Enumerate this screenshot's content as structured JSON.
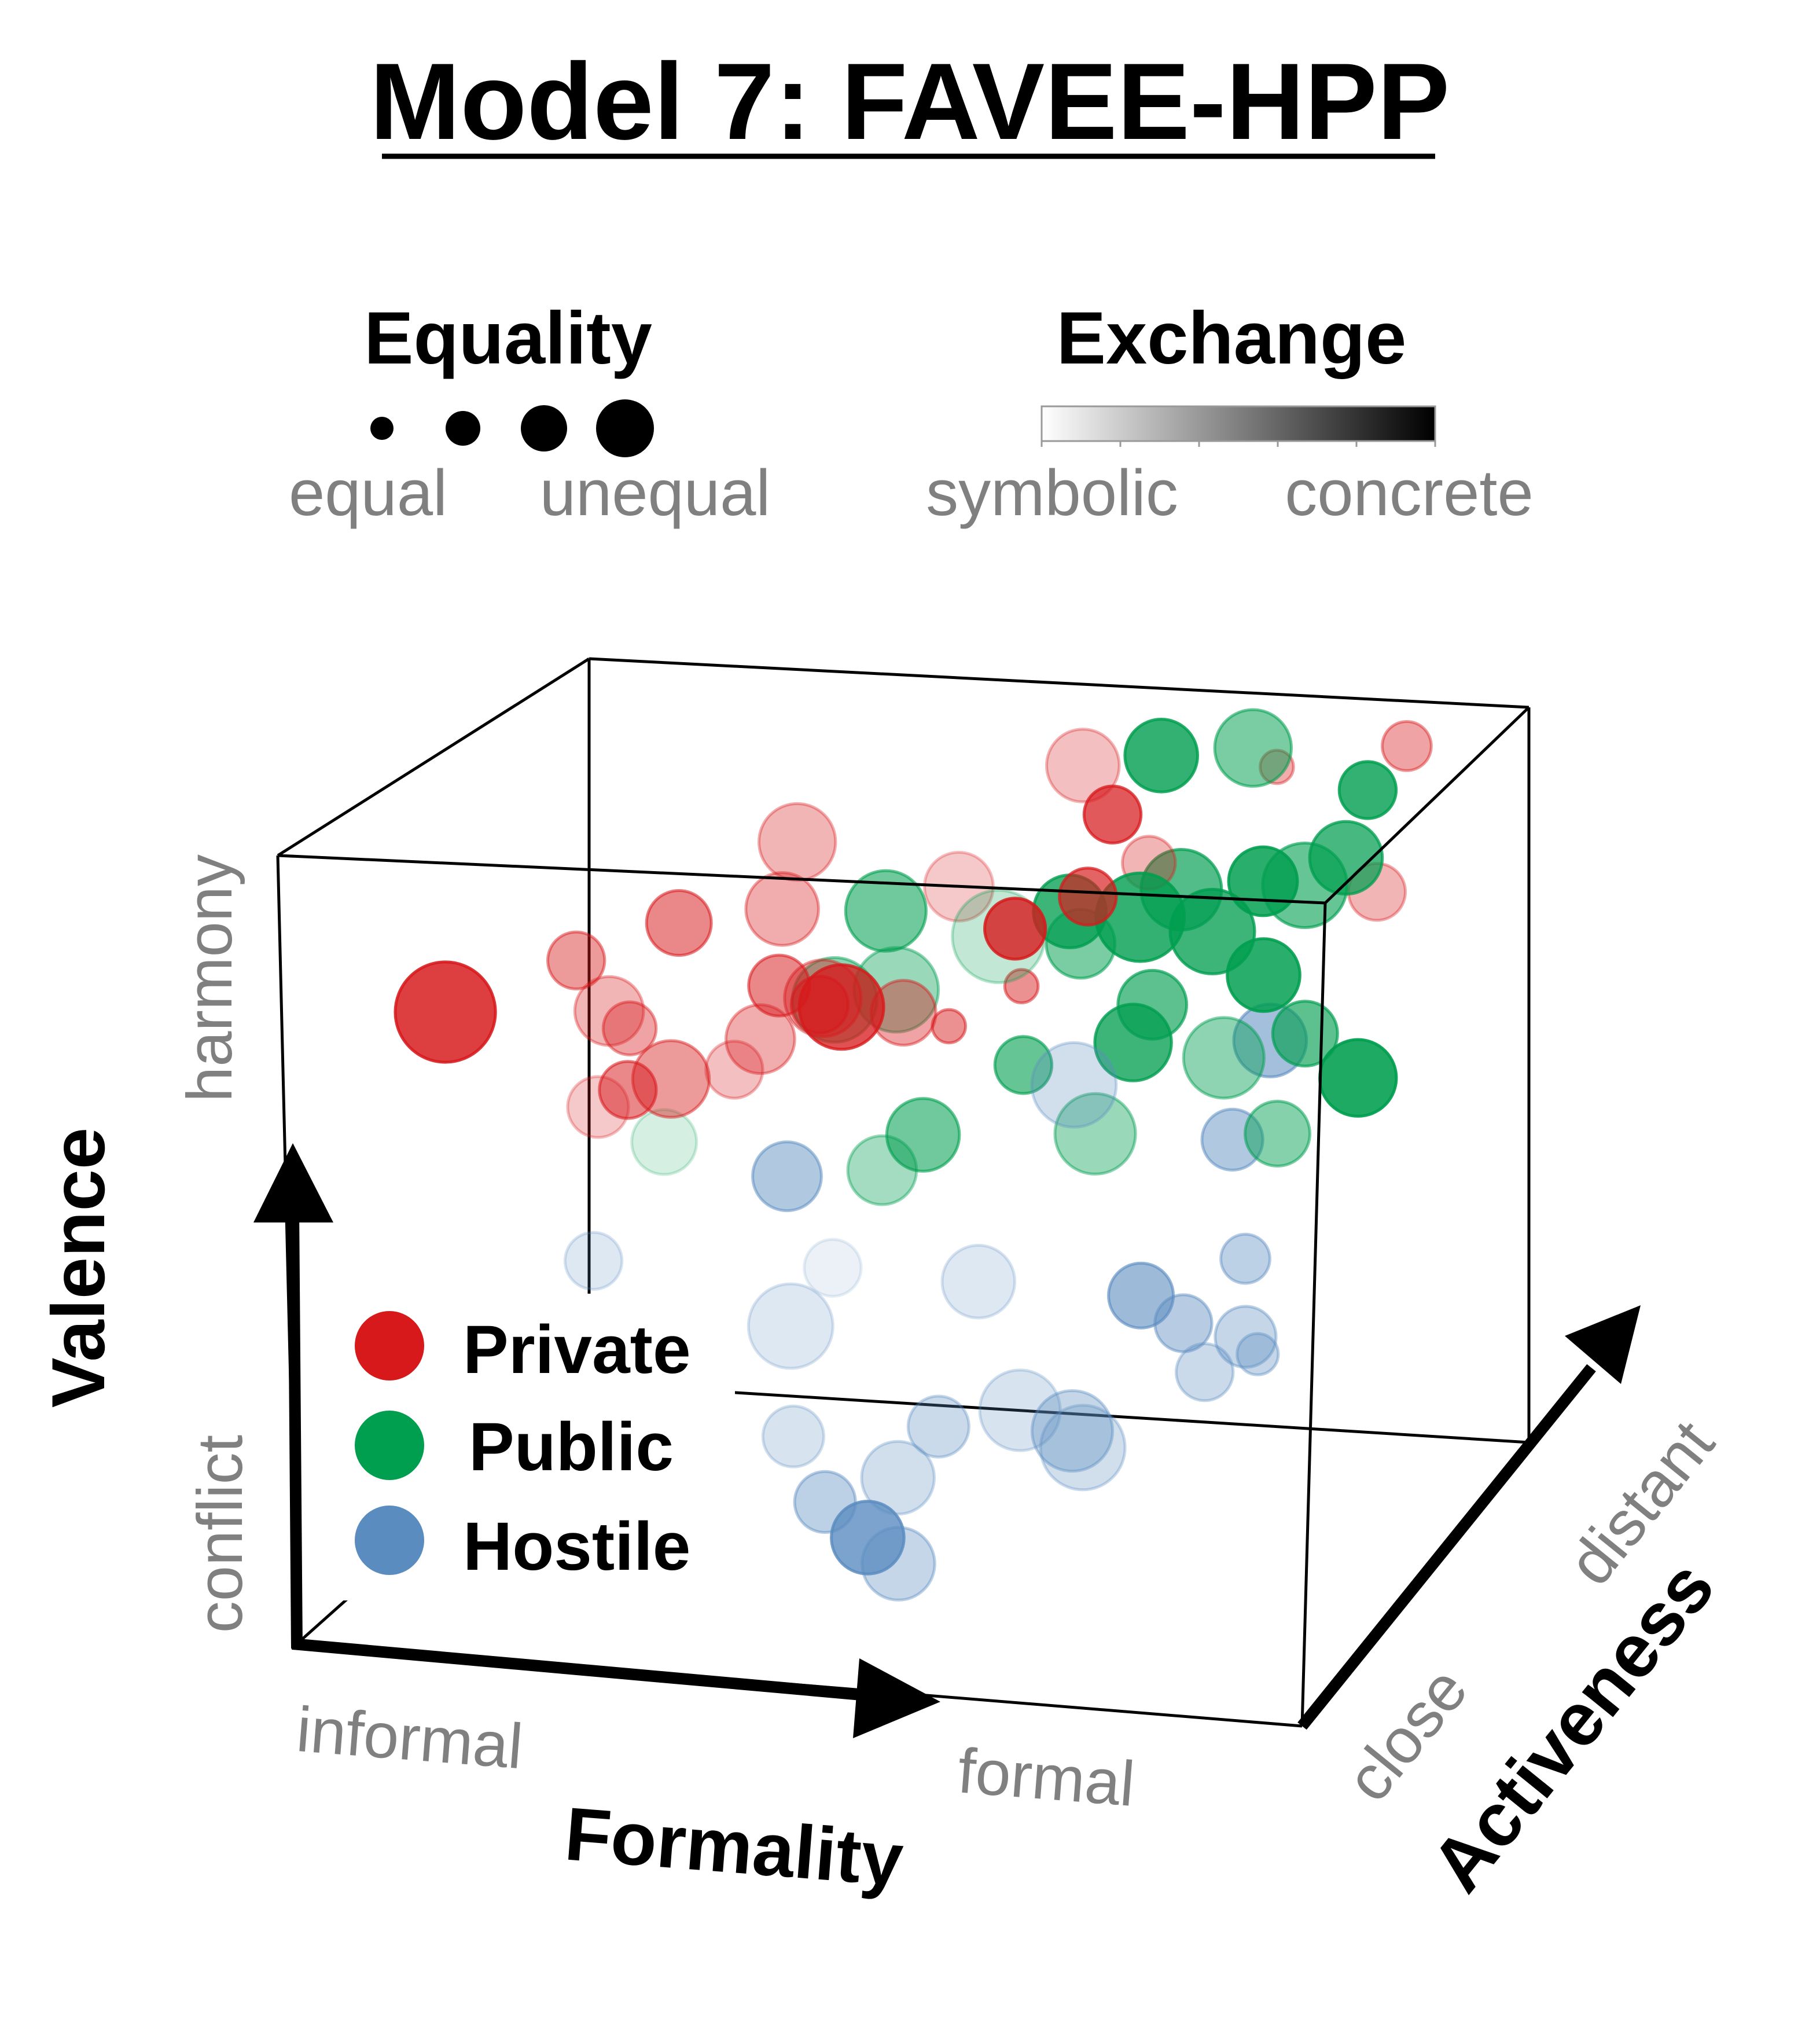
{
  "chart_data": {
    "type": "scatter",
    "title": "Model 7: FAVEE-HPP",
    "axes": {
      "x": {
        "label": "Formality",
        "low": "informal",
        "high": "formal"
      },
      "y": {
        "label": "Valence",
        "low": "conflict",
        "high": "harmony"
      },
      "z": {
        "label": "Activeness",
        "low": "close",
        "high": "distant"
      }
    },
    "size_legend": {
      "title": "Equality",
      "low": "equal",
      "high": "unequal",
      "levels": [
        0.25,
        0.5,
        0.75,
        1.0
      ]
    },
    "color_legend": {
      "title": "Exchange",
      "low": "symbolic",
      "high": "concrete"
    },
    "category_legend_placement": "lower-left inside box",
    "colors": {
      "Private": "#d7191c",
      "Public": "#009e4f",
      "Hostile": "#5b8cc0"
    },
    "grid": false,
    "series": [
      {
        "name": "Private",
        "color": "#d7191c",
        "points": [
          {
            "x": 0.14,
            "y": 0.78,
            "z": 0.1,
            "size": 0.95,
            "exchange": 0.95
          },
          {
            "x": 0.26,
            "y": 0.84,
            "z": 0.15,
            "size": 0.4,
            "exchange": 0.45
          },
          {
            "x": 0.34,
            "y": 0.86,
            "z": 0.25,
            "size": 0.5,
            "exchange": 0.55
          },
          {
            "x": 0.28,
            "y": 0.76,
            "z": 0.2,
            "size": 0.55,
            "exchange": 0.3
          },
          {
            "x": 0.34,
            "y": 0.68,
            "z": 0.2,
            "size": 0.65,
            "exchange": 0.45
          },
          {
            "x": 0.32,
            "y": 0.7,
            "z": 0.1,
            "size": 0.4,
            "exchange": 0.55
          },
          {
            "x": 0.5,
            "y": 0.77,
            "z": 0.25,
            "size": 0.75,
            "exchange": 0.85
          },
          {
            "x": 0.47,
            "y": 0.76,
            "z": 0.3,
            "size": 0.65,
            "exchange": 0.4
          },
          {
            "x": 0.55,
            "y": 0.82,
            "z": 0.55,
            "size": 0.55,
            "exchange": 0.2
          },
          {
            "x": 0.63,
            "y": 0.91,
            "z": 0.75,
            "size": 0.6,
            "exchange": 0.25
          },
          {
            "x": 0.67,
            "y": 0.87,
            "z": 0.7,
            "size": 0.4,
            "exchange": 0.8
          },
          {
            "x": 0.64,
            "y": 0.83,
            "z": 0.4,
            "size": 0.45,
            "exchange": 0.9
          },
          {
            "x": 0.69,
            "y": 0.84,
            "z": 0.5,
            "size": 0.4,
            "exchange": 0.75
          },
          {
            "x": 0.45,
            "y": 0.81,
            "z": 0.2,
            "size": 0.45,
            "exchange": 0.55
          },
          {
            "x": 0.49,
            "y": 0.79,
            "z": 0.2,
            "size": 0.4,
            "exchange": 0.5
          },
          {
            "x": 0.22,
            "y": 0.56,
            "z": 0.4,
            "size": 0.45,
            "exchange": 0.2
          },
          {
            "x": 0.38,
            "y": 0.66,
            "z": 0.3,
            "size": 0.4,
            "exchange": 0.25
          },
          {
            "x": 0.39,
            "y": 0.86,
            "z": 0.55,
            "size": 0.65,
            "exchange": 0.3
          },
          {
            "x": 0.55,
            "y": 0.75,
            "z": 0.3,
            "size": 0.5,
            "exchange": 0.4
          },
          {
            "x": 0.8,
            "y": 0.89,
            "z": 0.85,
            "size": 0.1,
            "exchange": 0.35
          },
          {
            "x": 0.93,
            "y": 0.93,
            "z": 0.85,
            "size": 0.3,
            "exchange": 0.4
          },
          {
            "x": 0.92,
            "y": 0.78,
            "z": 0.75,
            "size": 0.4,
            "exchange": 0.3
          },
          {
            "x": 0.56,
            "y": 0.68,
            "z": 0.45,
            "size": 0.1,
            "exchange": 0.5
          },
          {
            "x": 0.61,
            "y": 0.7,
            "z": 0.55,
            "size": 0.1,
            "exchange": 0.5
          },
          {
            "x": 0.74,
            "y": 0.87,
            "z": 0.55,
            "size": 0.35,
            "exchange": 0.3
          },
          {
            "x": 0.43,
            "y": 0.74,
            "z": 0.2,
            "size": 0.55,
            "exchange": 0.35
          },
          {
            "x": 0.42,
            "y": 0.85,
            "z": 0.35,
            "size": 0.6,
            "exchange": 0.35
          },
          {
            "x": 0.3,
            "y": 0.74,
            "z": 0.2,
            "size": 0.35,
            "exchange": 0.4
          }
        ]
      },
      {
        "name": "Public",
        "color": "#009e4f",
        "points": [
          {
            "x": 0.5,
            "y": 0.82,
            "z": 0.45,
            "size": 0.7,
            "exchange": 0.6
          },
          {
            "x": 0.52,
            "y": 0.74,
            "z": 0.4,
            "size": 0.75,
            "exchange": 0.4
          },
          {
            "x": 0.66,
            "y": 0.8,
            "z": 0.55,
            "size": 0.6,
            "exchange": 0.85
          },
          {
            "x": 0.73,
            "y": 0.8,
            "z": 0.55,
            "size": 0.8,
            "exchange": 0.9
          },
          {
            "x": 0.79,
            "y": 0.77,
            "z": 0.6,
            "size": 0.75,
            "exchange": 0.85
          },
          {
            "x": 0.84,
            "y": 0.72,
            "z": 0.6,
            "size": 0.6,
            "exchange": 0.95
          },
          {
            "x": 0.72,
            "y": 0.64,
            "z": 0.55,
            "size": 0.65,
            "exchange": 0.85
          },
          {
            "x": 0.92,
            "y": 0.58,
            "z": 0.65,
            "size": 0.65,
            "exchange": 1.0
          },
          {
            "x": 0.83,
            "y": 0.82,
            "z": 0.65,
            "size": 0.55,
            "exchange": 0.95
          },
          {
            "x": 0.72,
            "y": 0.95,
            "z": 0.7,
            "size": 0.6,
            "exchange": 0.9
          },
          {
            "x": 0.8,
            "y": 0.95,
            "z": 0.75,
            "size": 0.65,
            "exchange": 0.55
          },
          {
            "x": 0.89,
            "y": 0.87,
            "z": 0.85,
            "size": 0.4,
            "exchange": 0.9
          },
          {
            "x": 0.61,
            "y": 0.6,
            "z": 0.55,
            "size": 0.4,
            "exchange": 0.65
          },
          {
            "x": 0.52,
            "y": 0.52,
            "z": 0.5,
            "size": 0.6,
            "exchange": 0.6
          },
          {
            "x": 0.49,
            "y": 0.49,
            "z": 0.45,
            "size": 0.55,
            "exchange": 0.35
          },
          {
            "x": 0.85,
            "y": 0.52,
            "z": 0.6,
            "size": 0.5,
            "exchange": 0.5
          },
          {
            "x": 0.68,
            "y": 0.52,
            "z": 0.55,
            "size": 0.7,
            "exchange": 0.4
          },
          {
            "x": 0.32,
            "y": 0.58,
            "z": 0.25,
            "size": 0.5,
            "exchange": 0.1
          },
          {
            "x": 0.6,
            "y": 0.78,
            "z": 0.5,
            "size": 0.85,
            "exchange": 0.2
          },
          {
            "x": 0.86,
            "y": 0.8,
            "z": 0.7,
            "size": 0.75,
            "exchange": 0.65
          },
          {
            "x": 0.88,
            "y": 0.65,
            "z": 0.6,
            "size": 0.5,
            "exchange": 0.7
          },
          {
            "x": 0.74,
            "y": 0.69,
            "z": 0.55,
            "size": 0.55,
            "exchange": 0.7
          },
          {
            "x": 0.81,
            "y": 0.63,
            "z": 0.55,
            "size": 0.7,
            "exchange": 0.45
          },
          {
            "x": 0.89,
            "y": 0.82,
            "z": 0.75,
            "size": 0.6,
            "exchange": 0.8
          },
          {
            "x": 0.47,
            "y": 0.74,
            "z": 0.35,
            "size": 0.75,
            "exchange": 0.45
          },
          {
            "x": 0.76,
            "y": 0.82,
            "z": 0.6,
            "size": 0.7,
            "exchange": 0.75
          },
          {
            "x": 0.67,
            "y": 0.76,
            "z": 0.55,
            "size": 0.55,
            "exchange": 0.55
          }
        ]
      },
      {
        "name": "Hostile",
        "color": "#5b8cc0",
        "points": [
          {
            "x": 0.49,
            "y": 0.06,
            "z": 0.35,
            "size": 0.6,
            "exchange": 0.9
          },
          {
            "x": 0.52,
            "y": 0.03,
            "z": 0.35,
            "size": 0.6,
            "exchange": 0.35
          },
          {
            "x": 0.51,
            "y": 0.12,
            "z": 0.4,
            "size": 0.6,
            "exchange": 0.25
          },
          {
            "x": 0.46,
            "y": 0.12,
            "z": 0.3,
            "size": 0.45,
            "exchange": 0.4
          },
          {
            "x": 0.43,
            "y": 0.34,
            "z": 0.3,
            "size": 0.75,
            "exchange": 0.15
          },
          {
            "x": 0.54,
            "y": 0.17,
            "z": 0.45,
            "size": 0.45,
            "exchange": 0.3
          },
          {
            "x": 0.61,
            "y": 0.18,
            "z": 0.5,
            "size": 0.7,
            "exchange": 0.2
          },
          {
            "x": 0.65,
            "y": 0.14,
            "z": 0.55,
            "size": 0.7,
            "exchange": 0.35
          },
          {
            "x": 0.66,
            "y": 0.12,
            "z": 0.55,
            "size": 0.75,
            "exchange": 0.25
          },
          {
            "x": 0.71,
            "y": 0.3,
            "z": 0.6,
            "size": 0.5,
            "exchange": 0.65
          },
          {
            "x": 0.74,
            "y": 0.25,
            "z": 0.65,
            "size": 0.4,
            "exchange": 0.45
          },
          {
            "x": 0.76,
            "y": 0.19,
            "z": 0.65,
            "size": 0.4,
            "exchange": 0.3
          },
          {
            "x": 0.79,
            "y": 0.22,
            "z": 0.7,
            "size": 0.45,
            "exchange": 0.35
          },
          {
            "x": 0.78,
            "y": 0.3,
            "z": 0.75,
            "size": 0.3,
            "exchange": 0.4
          },
          {
            "x": 0.77,
            "y": 0.45,
            "z": 0.75,
            "size": 0.45,
            "exchange": 0.5
          },
          {
            "x": 0.81,
            "y": 0.58,
            "z": 0.75,
            "size": 0.6,
            "exchange": 0.6
          },
          {
            "x": 0.43,
            "y": 0.53,
            "z": 0.3,
            "size": 0.55,
            "exchange": 0.5
          },
          {
            "x": 0.27,
            "y": 0.46,
            "z": 0.15,
            "size": 0.4,
            "exchange": 0.15
          },
          {
            "x": 0.56,
            "y": 0.32,
            "z": 0.55,
            "size": 0.6,
            "exchange": 0.15
          },
          {
            "x": 0.45,
            "y": 0.38,
            "z": 0.4,
            "size": 0.4,
            "exchange": 0.05
          },
          {
            "x": 0.66,
            "y": 0.58,
            "z": 0.55,
            "size": 0.75,
            "exchange": 0.25
          },
          {
            "x": 0.43,
            "y": 0.2,
            "z": 0.3,
            "size": 0.45,
            "exchange": 0.2
          },
          {
            "x": 0.79,
            "y": 0.18,
            "z": 0.75,
            "size": 0.2,
            "exchange": 0.35
          }
        ]
      }
    ]
  }
}
